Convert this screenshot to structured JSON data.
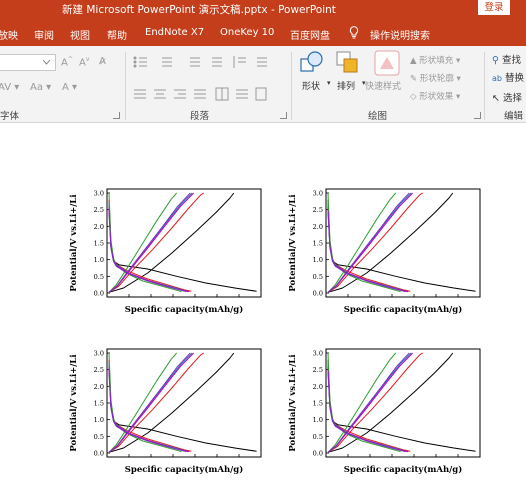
{
  "window": {
    "title": "新建 Microsoft PowerPoint 演示文稿.pptx  -  PowerPoint",
    "login_label": "登录"
  },
  "tabs": [
    "放映",
    "审阅",
    "视图",
    "帮助",
    "EndNote X7",
    "OneKey 10",
    "百度网盘"
  ],
  "tell_me": {
    "icon": "lightbulb-icon",
    "label": "操作说明搜索"
  },
  "ribbon": {
    "font_group_label": "字体",
    "paragraph_group_label": "段落",
    "drawing_group_label": "绘图",
    "editing_group_label": "编辑",
    "shape_label": "形状",
    "arrange_label": "排列",
    "quick_styles_label": "快速样式",
    "shape_fill_label": "形状填充",
    "shape_outline_label": "形状轮廓",
    "shape_effects_label": "形状效果",
    "find_label": "查找",
    "replace_label": "替换",
    "select_label": "选择"
  },
  "chart_data": [
    {
      "type": "line",
      "xlabel": "Specific capacity(mAh/g)",
      "ylabel": "Potential/V vs.Li+/Li",
      "yticks": [
        "0.0",
        "0.5",
        "1.0",
        "1.5",
        "2.0",
        "2.5",
        "3.0"
      ],
      "ylim": [
        0,
        3.0
      ],
      "grid": false,
      "series": [
        {
          "color": "#000000",
          "discharge": [
            [
              0,
              2.6
            ],
            [
              4,
              1.4
            ],
            [
              10,
              0.95
            ],
            [
              20,
              0.85
            ],
            [
              40,
              0.8
            ],
            [
              80,
              0.72
            ],
            [
              140,
              0.5
            ],
            [
              200,
              0.3
            ],
            [
              260,
              0.15
            ],
            [
              305,
              0.05
            ]
          ],
          "charge": [
            [
              0,
              0.02
            ],
            [
              30,
              0.15
            ],
            [
              80,
              0.6
            ],
            [
              130,
              1.2
            ],
            [
              180,
              1.85
            ],
            [
              220,
              2.4
            ],
            [
              250,
              2.85
            ],
            [
              258,
              3.0
            ]
          ]
        },
        {
          "color": "#e41a1c",
          "discharge": [
            [
              0,
              2.8
            ],
            [
              4,
              1.5
            ],
            [
              10,
              1.0
            ],
            [
              16,
              0.85
            ],
            [
              40,
              0.65
            ],
            [
              80,
              0.42
            ],
            [
              120,
              0.25
            ],
            [
              155,
              0.1
            ],
            [
              170,
              0.05
            ]
          ],
          "charge": [
            [
              0,
              0.02
            ],
            [
              20,
              0.2
            ],
            [
              50,
              0.7
            ],
            [
              90,
              1.3
            ],
            [
              130,
              1.95
            ],
            [
              165,
              2.55
            ],
            [
              190,
              2.95
            ],
            [
              196,
              3.0
            ]
          ]
        },
        {
          "color": "#1f77b4",
          "discharge": [
            [
              0,
              2.7
            ],
            [
              4,
              1.5
            ],
            [
              9,
              1.0
            ],
            [
              15,
              0.85
            ],
            [
              40,
              0.6
            ],
            [
              80,
              0.38
            ],
            [
              120,
              0.22
            ],
            [
              150,
              0.1
            ],
            [
              162,
              0.05
            ]
          ],
          "charge": [
            [
              0,
              0.02
            ],
            [
              18,
              0.22
            ],
            [
              45,
              0.75
            ],
            [
              80,
              1.4
            ],
            [
              115,
              2.05
            ],
            [
              148,
              2.65
            ],
            [
              172,
              3.0
            ]
          ]
        },
        {
          "color": "#2ca02c",
          "discharge": [
            [
              0,
              3.0
            ],
            [
              4,
              1.6
            ],
            [
              9,
              1.05
            ],
            [
              14,
              0.85
            ],
            [
              35,
              0.6
            ],
            [
              70,
              0.36
            ],
            [
              110,
              0.2
            ],
            [
              140,
              0.08
            ],
            [
              150,
              0.04
            ]
          ],
          "charge": [
            [
              0,
              0.02
            ],
            [
              15,
              0.25
            ],
            [
              40,
              0.8
            ],
            [
              70,
              1.5
            ],
            [
              100,
              2.2
            ],
            [
              128,
              2.8
            ],
            [
              140,
              3.0
            ]
          ]
        },
        {
          "color": "#c000c0",
          "discharge": [
            [
              0,
              2.5
            ],
            [
              4,
              1.4
            ],
            [
              9,
              0.98
            ],
            [
              15,
              0.82
            ],
            [
              40,
              0.6
            ],
            [
              80,
              0.38
            ],
            [
              120,
              0.2
            ],
            [
              155,
              0.07
            ],
            [
              166,
              0.04
            ]
          ],
          "charge": [
            [
              0,
              0.02
            ],
            [
              18,
              0.22
            ],
            [
              45,
              0.72
            ],
            [
              80,
              1.35
            ],
            [
              115,
              2.0
            ],
            [
              148,
              2.6
            ],
            [
              175,
              3.0
            ]
          ]
        },
        {
          "color": "#7b2fbf",
          "discharge": [
            [
              0,
              2.4
            ],
            [
              4,
              1.35
            ],
            [
              9,
              0.95
            ],
            [
              15,
              0.8
            ],
            [
              40,
              0.58
            ],
            [
              80,
              0.36
            ],
            [
              120,
              0.19
            ],
            [
              152,
              0.07
            ],
            [
              160,
              0.04
            ]
          ],
          "charge": [
            [
              0,
              0.02
            ],
            [
              17,
              0.22
            ],
            [
              44,
              0.74
            ],
            [
              78,
              1.38
            ],
            [
              112,
              2.02
            ],
            [
              142,
              2.6
            ],
            [
              168,
              3.0
            ]
          ]
        }
      ]
    }
  ]
}
